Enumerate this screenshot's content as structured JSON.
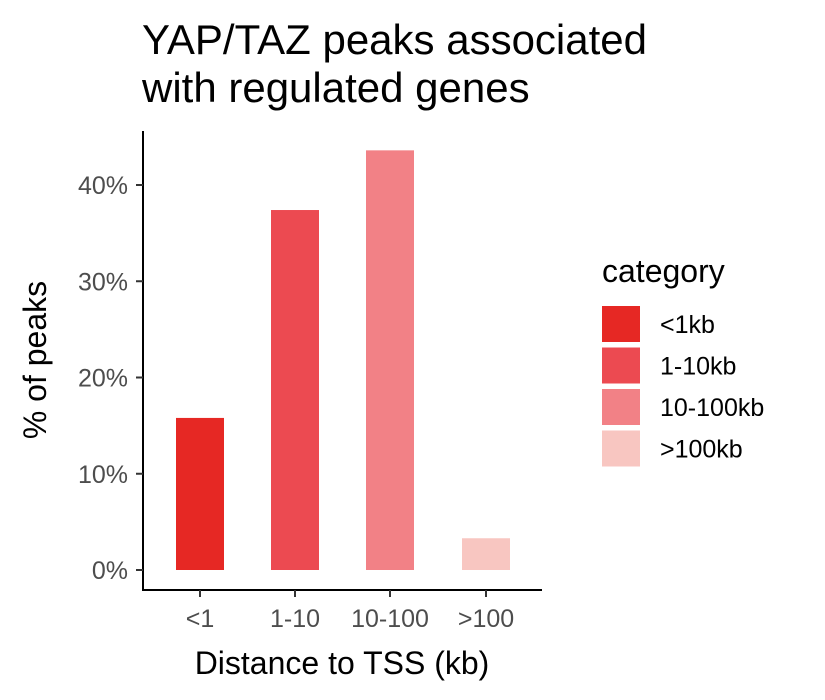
{
  "chart_data": {
    "type": "bar",
    "title_lines": [
      "YAP/TAZ peaks associated",
      "with regulated genes"
    ],
    "xlabel": "Distance to TSS (kb)",
    "ylabel": "% of peaks",
    "categories": [
      "<1",
      "1-10",
      "10-100",
      ">100"
    ],
    "values": [
      15.8,
      37.4,
      43.6,
      3.3
    ],
    "ylim": [
      0,
      45
    ],
    "yticks": [
      0,
      10,
      20,
      30,
      40
    ],
    "ytick_labels": [
      "0%",
      "10%",
      "20%",
      "30%",
      "40%"
    ],
    "grid": false,
    "legend": {
      "title": "category",
      "position": "right",
      "entries": [
        {
          "label": "<1kb",
          "color": "#e62824"
        },
        {
          "label": "1-10kb",
          "color": "#ec4a51"
        },
        {
          "label": "10-100kb",
          "color": "#f28186"
        },
        {
          "label": ">100kb",
          "color": "#f8c6c1"
        }
      ]
    },
    "bar_colors": [
      "#e62824",
      "#ec4a51",
      "#f28186",
      "#f8c6c1"
    ]
  }
}
